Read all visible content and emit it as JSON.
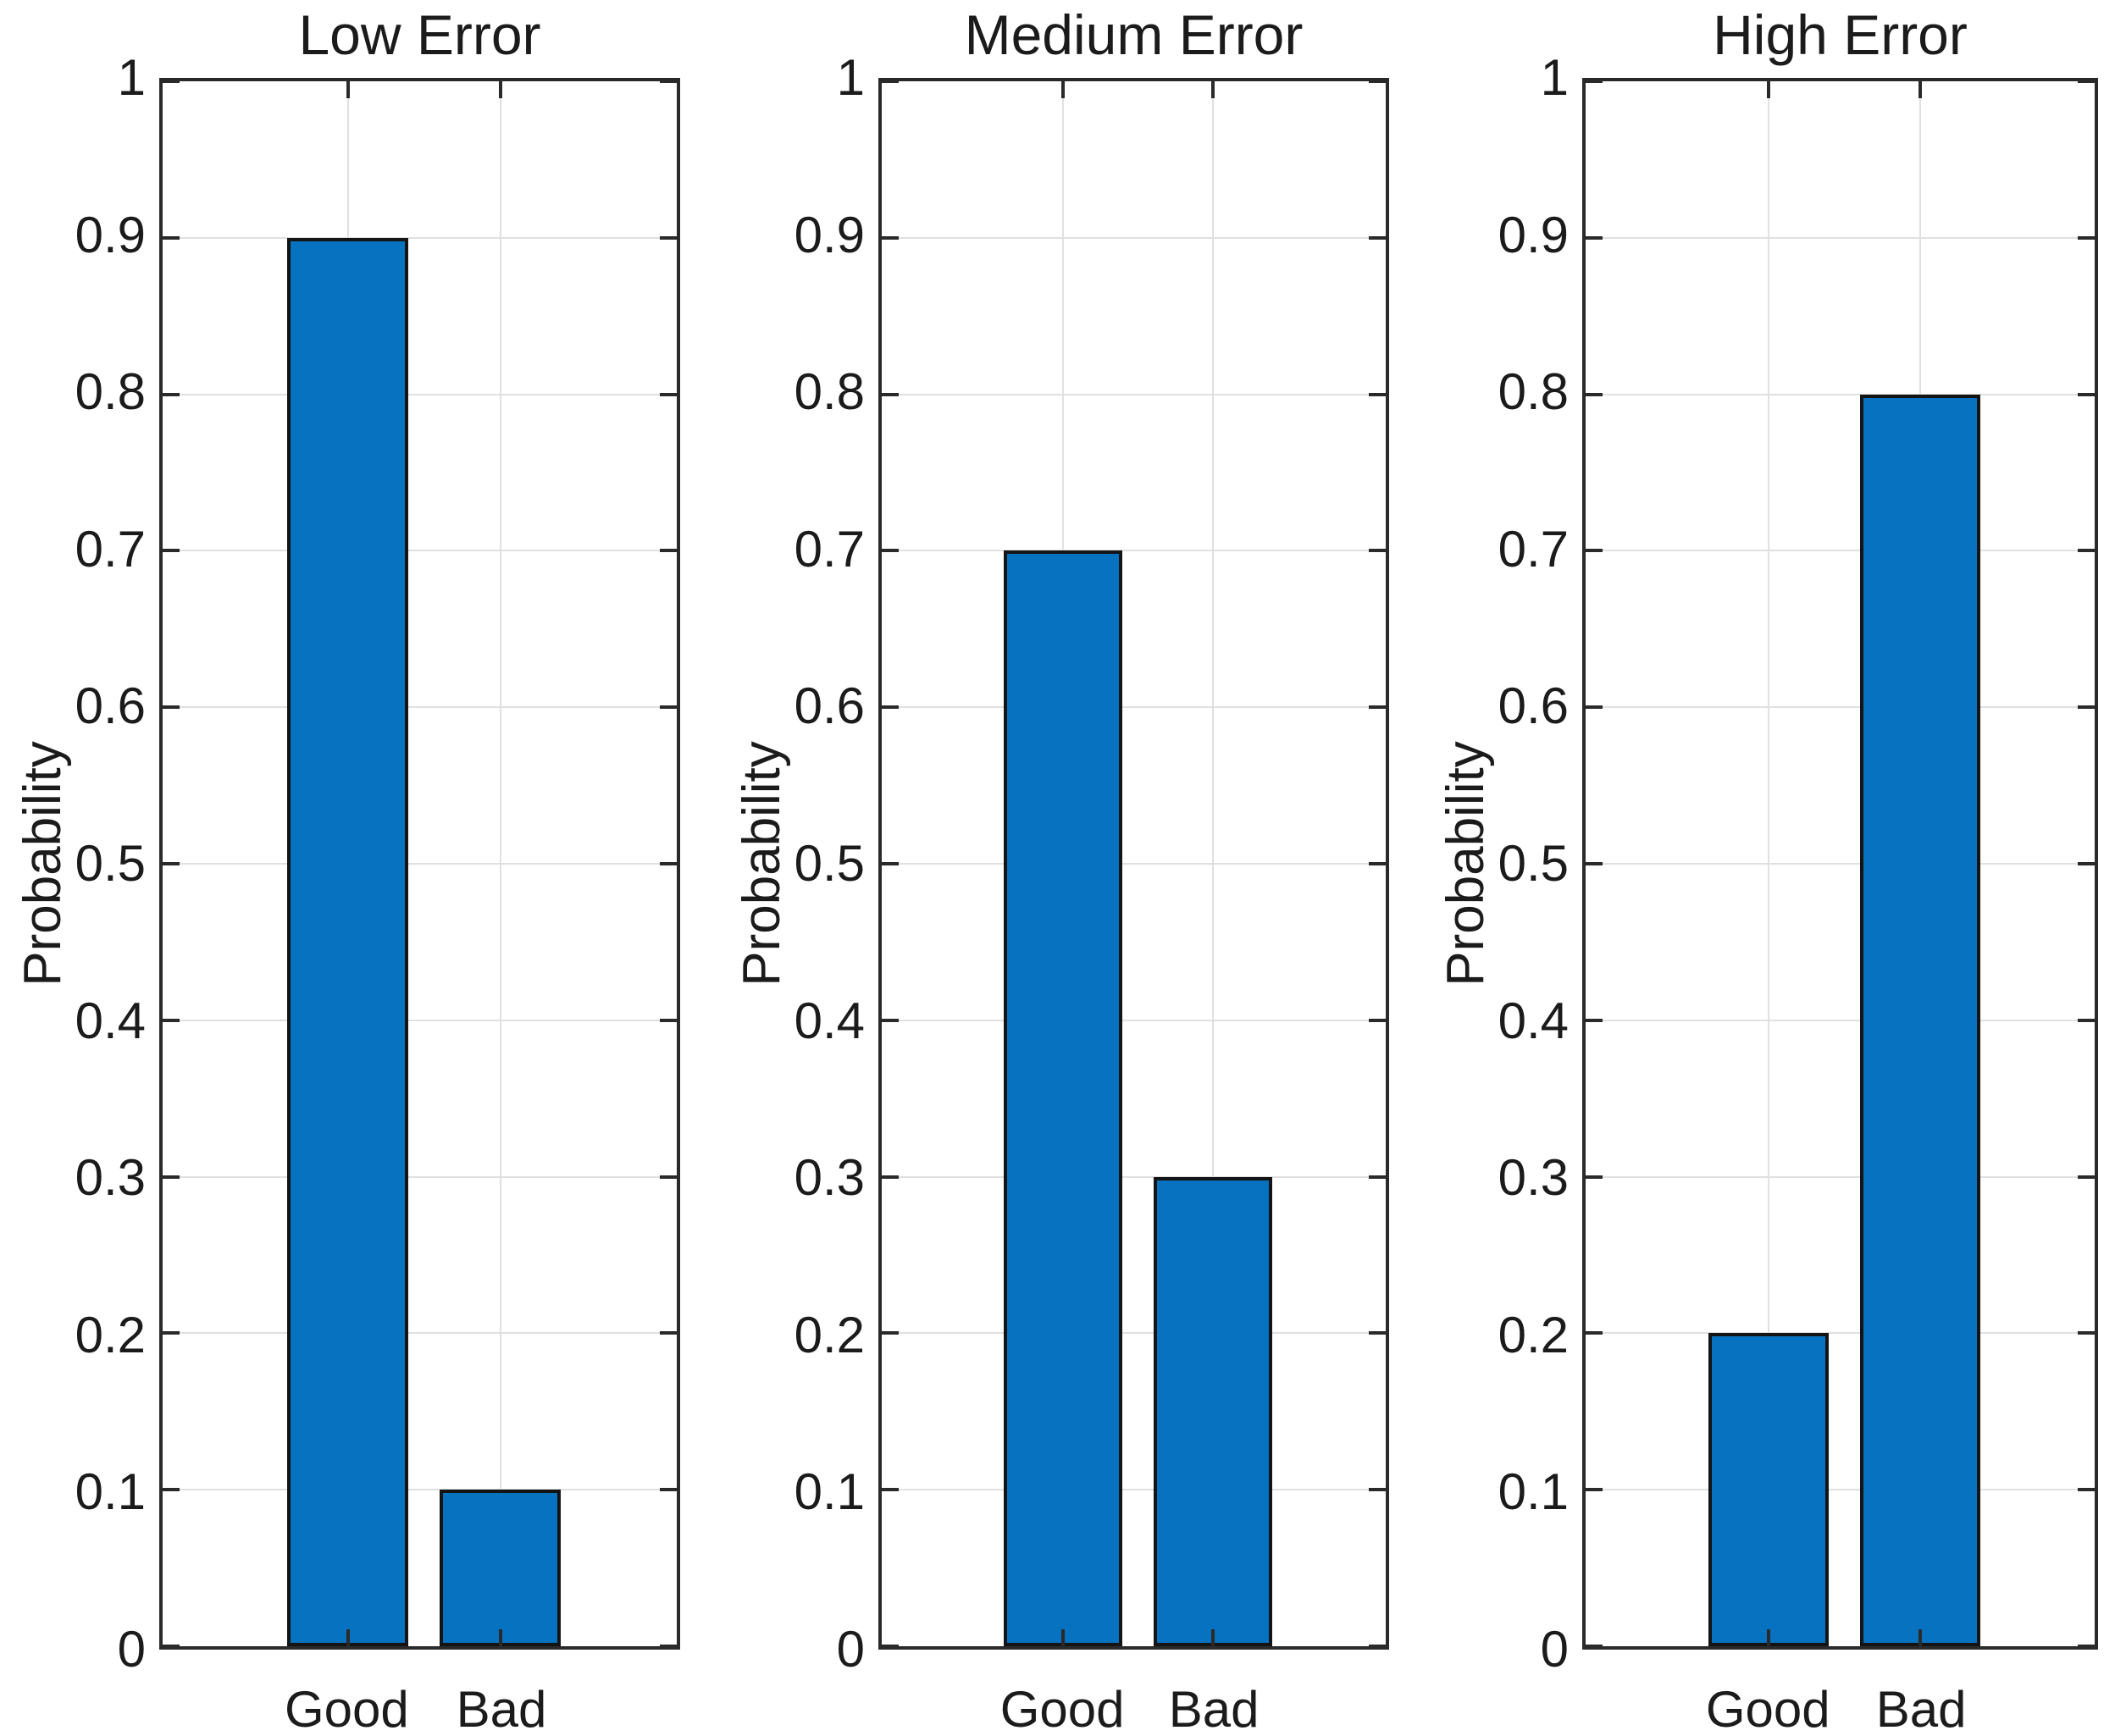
{
  "style": {
    "background": "#ffffff",
    "bar_fill": "#0772bf",
    "bar_edge": "#141414",
    "axis_color": "#2a2a2a",
    "grid_color": "#e0e0e0",
    "text_color": "#1b1b1b"
  },
  "chart_data": [
    {
      "type": "bar",
      "title": "Low Error",
      "ylabel": "Probability",
      "categories": [
        "Good",
        "Bad"
      ],
      "values": [
        0.9,
        0.1
      ],
      "ylim": [
        0,
        1
      ],
      "ytick_values": [
        0,
        0.1,
        0.2,
        0.3,
        0.4,
        0.5,
        0.6,
        0.7,
        0.8,
        0.9,
        1
      ],
      "ytick_labels": [
        "0",
        "0.1",
        "0.2",
        "0.3",
        "0.4",
        "0.5",
        "0.6",
        "0.7",
        "0.8",
        "0.9",
        "1"
      ],
      "grid": true,
      "legend": "none",
      "bar_centers_frac": [
        0.36,
        0.657
      ],
      "bar_width_frac": 0.233
    },
    {
      "type": "bar",
      "title": "Medium Error",
      "ylabel": "Probability",
      "categories": [
        "Good",
        "Bad"
      ],
      "values": [
        0.7,
        0.3
      ],
      "ylim": [
        0,
        1
      ],
      "ytick_values": [
        0,
        0.1,
        0.2,
        0.3,
        0.4,
        0.5,
        0.6,
        0.7,
        0.8,
        0.9,
        1
      ],
      "ytick_labels": [
        "0",
        "0.1",
        "0.2",
        "0.3",
        "0.4",
        "0.5",
        "0.6",
        "0.7",
        "0.8",
        "0.9",
        "1"
      ],
      "grid": true,
      "legend": "none",
      "bar_centers_frac": [
        0.36,
        0.657
      ],
      "bar_width_frac": 0.233
    },
    {
      "type": "bar",
      "title": "High Error",
      "ylabel": "Probability",
      "categories": [
        "Good",
        "Bad"
      ],
      "values": [
        0.2,
        0.8
      ],
      "ylim": [
        0,
        1
      ],
      "ytick_values": [
        0,
        0.1,
        0.2,
        0.3,
        0.4,
        0.5,
        0.6,
        0.7,
        0.8,
        0.9,
        1
      ],
      "ytick_labels": [
        "0",
        "0.1",
        "0.2",
        "0.3",
        "0.4",
        "0.5",
        "0.6",
        "0.7",
        "0.8",
        "0.9",
        "1"
      ],
      "grid": true,
      "legend": "none",
      "bar_centers_frac": [
        0.36,
        0.657
      ],
      "bar_width_frac": 0.233
    }
  ]
}
